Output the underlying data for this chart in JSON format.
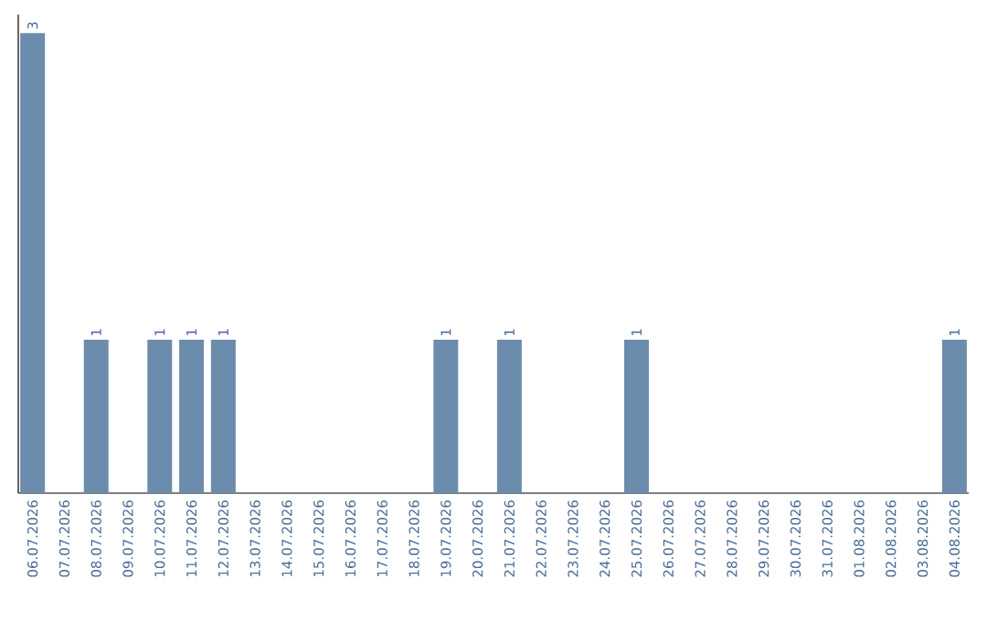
{
  "chart_data": {
    "type": "bar",
    "categories": [
      "06.07.2026",
      "07.07.2026",
      "08.07.2026",
      "09.07.2026",
      "10.07.2026",
      "11.07.2026",
      "12.07.2026",
      "13.07.2026",
      "14.07.2026",
      "15.07.2026",
      "16.07.2026",
      "17.07.2026",
      "18.07.2026",
      "19.07.2026",
      "20.07.2026",
      "21.07.2026",
      "22.07.2026",
      "23.07.2026",
      "24.07.2026",
      "25.07.2026",
      "26.07.2026",
      "27.07.2026",
      "28.07.2026",
      "29.07.2026",
      "30.07.2026",
      "31.07.2026",
      "01.08.2026",
      "02.08.2026",
      "03.08.2026",
      "04.08.2026"
    ],
    "values": [
      3,
      0,
      1,
      0,
      1,
      1,
      1,
      0,
      0,
      0,
      0,
      0,
      0,
      1,
      0,
      1,
      0,
      0,
      0,
      1,
      0,
      0,
      0,
      0,
      0,
      0,
      0,
      0,
      0,
      1
    ],
    "value_labels": [
      "3",
      null,
      "1",
      null,
      "1",
      "1",
      "1",
      null,
      null,
      null,
      null,
      null,
      null,
      "1",
      null,
      "1",
      null,
      null,
      null,
      "1",
      null,
      null,
      null,
      null,
      null,
      null,
      null,
      null,
      null,
      "1"
    ],
    "color": "#6b8cad",
    "tick_labels": "x"
  }
}
